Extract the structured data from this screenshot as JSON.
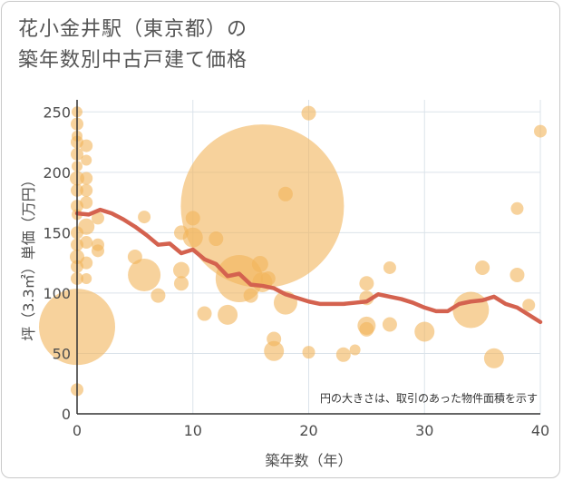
{
  "title_line1": "花小金井駅（東京都）の",
  "title_line2": "築年数別中古戸建て価格",
  "colors": {
    "bubble": "#f2b45a",
    "line": "#d4624f",
    "grid": "#dbe3ea",
    "axis": "#333333"
  },
  "chart_data": {
    "type": "scatter",
    "title": "花小金井駅（東京都）の築年数別中古戸建て価格",
    "xlabel": "築年数（年）",
    "ylabel": "坪（3.3㎡）単価（万円）",
    "xlim": [
      0,
      40
    ],
    "ylim": [
      0,
      260
    ],
    "xticks": [
      0,
      10,
      20,
      30,
      40
    ],
    "yticks": [
      0,
      50,
      100,
      150,
      200,
      250
    ],
    "note": "円の大きさは、取引のあった物件面積を示す",
    "bubbles": [
      {
        "x": 0,
        "y": 250,
        "s": 6
      },
      {
        "x": 0,
        "y": 240,
        "s": 7
      },
      {
        "x": 0,
        "y": 230,
        "s": 6
      },
      {
        "x": 0,
        "y": 225,
        "s": 7
      },
      {
        "x": 0,
        "y": 215,
        "s": 7
      },
      {
        "x": 0,
        "y": 205,
        "s": 6
      },
      {
        "x": 0,
        "y": 195,
        "s": 8
      },
      {
        "x": 0,
        "y": 185,
        "s": 7
      },
      {
        "x": 0,
        "y": 172,
        "s": 7
      },
      {
        "x": 0,
        "y": 165,
        "s": 6
      },
      {
        "x": 0,
        "y": 150,
        "s": 7
      },
      {
        "x": 0,
        "y": 140,
        "s": 7
      },
      {
        "x": 0,
        "y": 130,
        "s": 8
      },
      {
        "x": 0,
        "y": 122,
        "s": 7
      },
      {
        "x": 0,
        "y": 112,
        "s": 7
      },
      {
        "x": 0,
        "y": 72,
        "s": 42
      },
      {
        "x": 0,
        "y": 20,
        "s": 7
      },
      {
        "x": 0.8,
        "y": 222,
        "s": 7
      },
      {
        "x": 0.8,
        "y": 210,
        "s": 6
      },
      {
        "x": 0.8,
        "y": 195,
        "s": 7
      },
      {
        "x": 0.8,
        "y": 185,
        "s": 7
      },
      {
        "x": 0.8,
        "y": 175,
        "s": 7
      },
      {
        "x": 0.8,
        "y": 155,
        "s": 9
      },
      {
        "x": 0.8,
        "y": 142,
        "s": 7
      },
      {
        "x": 0.8,
        "y": 125,
        "s": 7
      },
      {
        "x": 0.8,
        "y": 112,
        "s": 6
      },
      {
        "x": 1.8,
        "y": 162,
        "s": 7
      },
      {
        "x": 1.8,
        "y": 140,
        "s": 7
      },
      {
        "x": 1.8,
        "y": 135,
        "s": 7
      },
      {
        "x": 5,
        "y": 130,
        "s": 8
      },
      {
        "x": 5.8,
        "y": 163,
        "s": 7
      },
      {
        "x": 5.8,
        "y": 115,
        "s": 18
      },
      {
        "x": 7,
        "y": 98,
        "s": 8
      },
      {
        "x": 9,
        "y": 150,
        "s": 8
      },
      {
        "x": 9,
        "y": 119,
        "s": 9
      },
      {
        "x": 9,
        "y": 108,
        "s": 8
      },
      {
        "x": 10,
        "y": 162,
        "s": 8
      },
      {
        "x": 10,
        "y": 146,
        "s": 11
      },
      {
        "x": 11,
        "y": 83,
        "s": 8
      },
      {
        "x": 12,
        "y": 145,
        "s": 8
      },
      {
        "x": 13,
        "y": 82,
        "s": 11
      },
      {
        "x": 14,
        "y": 112,
        "s": 26
      },
      {
        "x": 15,
        "y": 98,
        "s": 8
      },
      {
        "x": 15.8,
        "y": 124,
        "s": 9
      },
      {
        "x": 16,
        "y": 172,
        "s": 90
      },
      {
        "x": 16,
        "y": 109,
        "s": 11
      },
      {
        "x": 16.5,
        "y": 112,
        "s": 8
      },
      {
        "x": 17,
        "y": 62,
        "s": 8
      },
      {
        "x": 17,
        "y": 52,
        "s": 11
      },
      {
        "x": 18,
        "y": 182,
        "s": 8
      },
      {
        "x": 18,
        "y": 92,
        "s": 13
      },
      {
        "x": 20,
        "y": 249,
        "s": 8
      },
      {
        "x": 20,
        "y": 51,
        "s": 7
      },
      {
        "x": 23,
        "y": 49,
        "s": 8
      },
      {
        "x": 24,
        "y": 53,
        "s": 6
      },
      {
        "x": 25,
        "y": 108,
        "s": 8
      },
      {
        "x": 25,
        "y": 96,
        "s": 8
      },
      {
        "x": 25,
        "y": 73,
        "s": 10
      },
      {
        "x": 25,
        "y": 70,
        "s": 8
      },
      {
        "x": 27,
        "y": 121,
        "s": 7
      },
      {
        "x": 27,
        "y": 74,
        "s": 8
      },
      {
        "x": 30,
        "y": 68,
        "s": 11
      },
      {
        "x": 34,
        "y": 86,
        "s": 20
      },
      {
        "x": 35,
        "y": 121,
        "s": 8
      },
      {
        "x": 36,
        "y": 46,
        "s": 11
      },
      {
        "x": 38,
        "y": 170,
        "s": 7
      },
      {
        "x": 38,
        "y": 115,
        "s": 8
      },
      {
        "x": 39,
        "y": 90,
        "s": 7
      },
      {
        "x": 40,
        "y": 234,
        "s": 7
      }
    ],
    "trend_line": {
      "x": [
        0,
        1,
        2,
        3,
        4,
        5,
        6,
        7,
        8,
        9,
        10,
        11,
        12,
        13,
        14,
        15,
        16,
        17,
        18,
        19,
        20,
        21,
        22,
        23,
        24,
        25,
        26,
        27,
        28,
        29,
        30,
        31,
        32,
        33,
        34,
        35,
        36,
        37,
        38,
        39,
        40
      ],
      "y": [
        166,
        165,
        169,
        166,
        161,
        155,
        148,
        140,
        141,
        133,
        136,
        128,
        124,
        114,
        116,
        107,
        106,
        104,
        99,
        96,
        93,
        91,
        91,
        91,
        92,
        93,
        99,
        97,
        95,
        92,
        88,
        85,
        85,
        91,
        93,
        94,
        97,
        91,
        88,
        82,
        76
      ]
    }
  }
}
